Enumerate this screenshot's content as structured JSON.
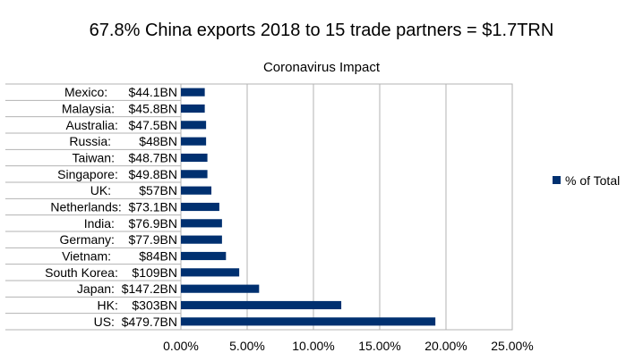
{
  "chart_data": {
    "type": "bar",
    "orientation": "horizontal",
    "title": "67.8% China exports 2018 to 15 trade partners = $1.7TRN",
    "subtitle": "Coronavirus Impact",
    "categories": [
      "Mexico:      $44.1BN",
      "Malaysia:    $45.8BN",
      "Australia:   $47.5BN",
      "Russia:        $48BN",
      "Taiwan:    $48.7BN",
      "Singapore:   $49.8BN",
      "UK:        $57BN",
      "Netherlands:  $73.1BN",
      "India:    $76.9BN",
      "Germany:    $77.9BN",
      "Vietnam:        $84BN",
      "South Korea:    $109BN",
      "Japan:  $147.2BN",
      "HK:    $303BN",
      "US:  $479.7BN"
    ],
    "series": [
      {
        "name": "% of Total",
        "color": "#003070",
        "values": [
          1.8,
          1.8,
          1.9,
          1.9,
          2.0,
          2.0,
          2.3,
          2.9,
          3.1,
          3.1,
          3.4,
          4.4,
          5.9,
          12.1,
          19.2
        ]
      }
    ],
    "xlim": [
      0,
      25
    ],
    "xticks": [
      0,
      5,
      10,
      15,
      20,
      25
    ],
    "xtick_labels": [
      "0.00%",
      "5.00%",
      "10.00%",
      "15.00%",
      "20.00%",
      "25.00%"
    ],
    "grid": "vertical",
    "legend_position": "right"
  }
}
